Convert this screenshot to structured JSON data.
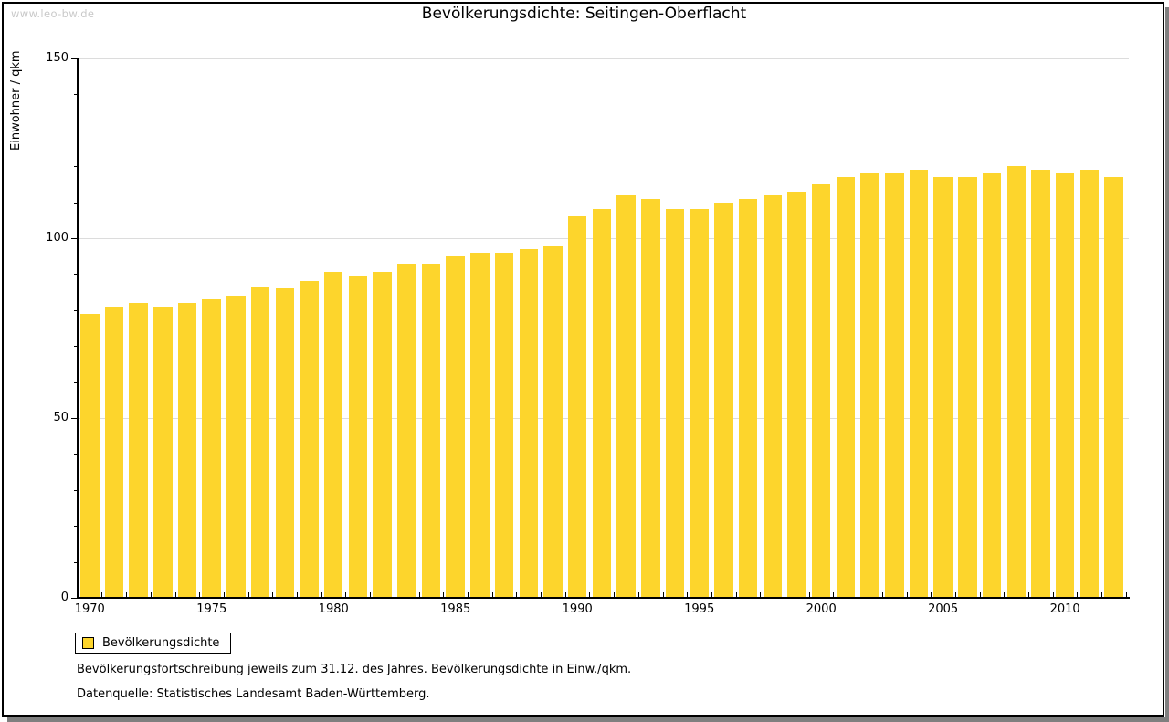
{
  "watermark": "www.leo-bw.de",
  "title": "Bevölkerungsdichte: Seitingen-Oberflacht",
  "legend": {
    "label": "Bevölkerungsdichte"
  },
  "footnote1": "Bevölkerungsfortschreibung jeweils zum 31.12. des Jahres. Bevölkerungsdichte in Einw./qkm.",
  "footnote2": "Datenquelle: Statistisches Landesamt Baden-Württemberg.",
  "colors": {
    "bar": "#fdd52c",
    "grid": "#dcdcdc",
    "axis": "#000000",
    "watermark": "#c9c9c9",
    "shadow": "#7f7f7f"
  },
  "chart_data": {
    "type": "bar",
    "title": "Bevölkerungsdichte: Seitingen-Oberflacht",
    "xlabel": "",
    "ylabel": "Einwohner / qkm",
    "ylim": [
      0,
      150
    ],
    "y_major_ticks": [
      0,
      50,
      100,
      150
    ],
    "y_minor_step": 10,
    "grid": true,
    "legend_position": "bottom-left",
    "series_name": "Bevölkerungsdichte",
    "x_axis_labeled_years": [
      1970,
      1975,
      1980,
      1985,
      1990,
      1995,
      2000,
      2005,
      2010
    ],
    "categories": [
      1970,
      1971,
      1972,
      1973,
      1974,
      1975,
      1976,
      1977,
      1978,
      1979,
      1980,
      1981,
      1982,
      1983,
      1984,
      1985,
      1986,
      1987,
      1988,
      1989,
      1990,
      1991,
      1992,
      1993,
      1994,
      1995,
      1996,
      1997,
      1998,
      1999,
      2000,
      2001,
      2002,
      2003,
      2004,
      2005,
      2006,
      2007,
      2008,
      2009,
      2010,
      2011,
      2012
    ],
    "values": [
      79,
      81,
      82,
      81,
      82,
      83,
      84,
      86.5,
      86,
      88,
      90.5,
      89.5,
      90.5,
      93,
      93,
      95,
      96,
      96,
      97,
      98,
      106,
      108,
      112,
      111,
      108,
      108,
      110,
      111,
      112,
      113,
      115,
      117,
      118,
      118,
      119,
      117,
      117,
      118,
      120,
      119,
      118,
      119,
      117
    ]
  }
}
